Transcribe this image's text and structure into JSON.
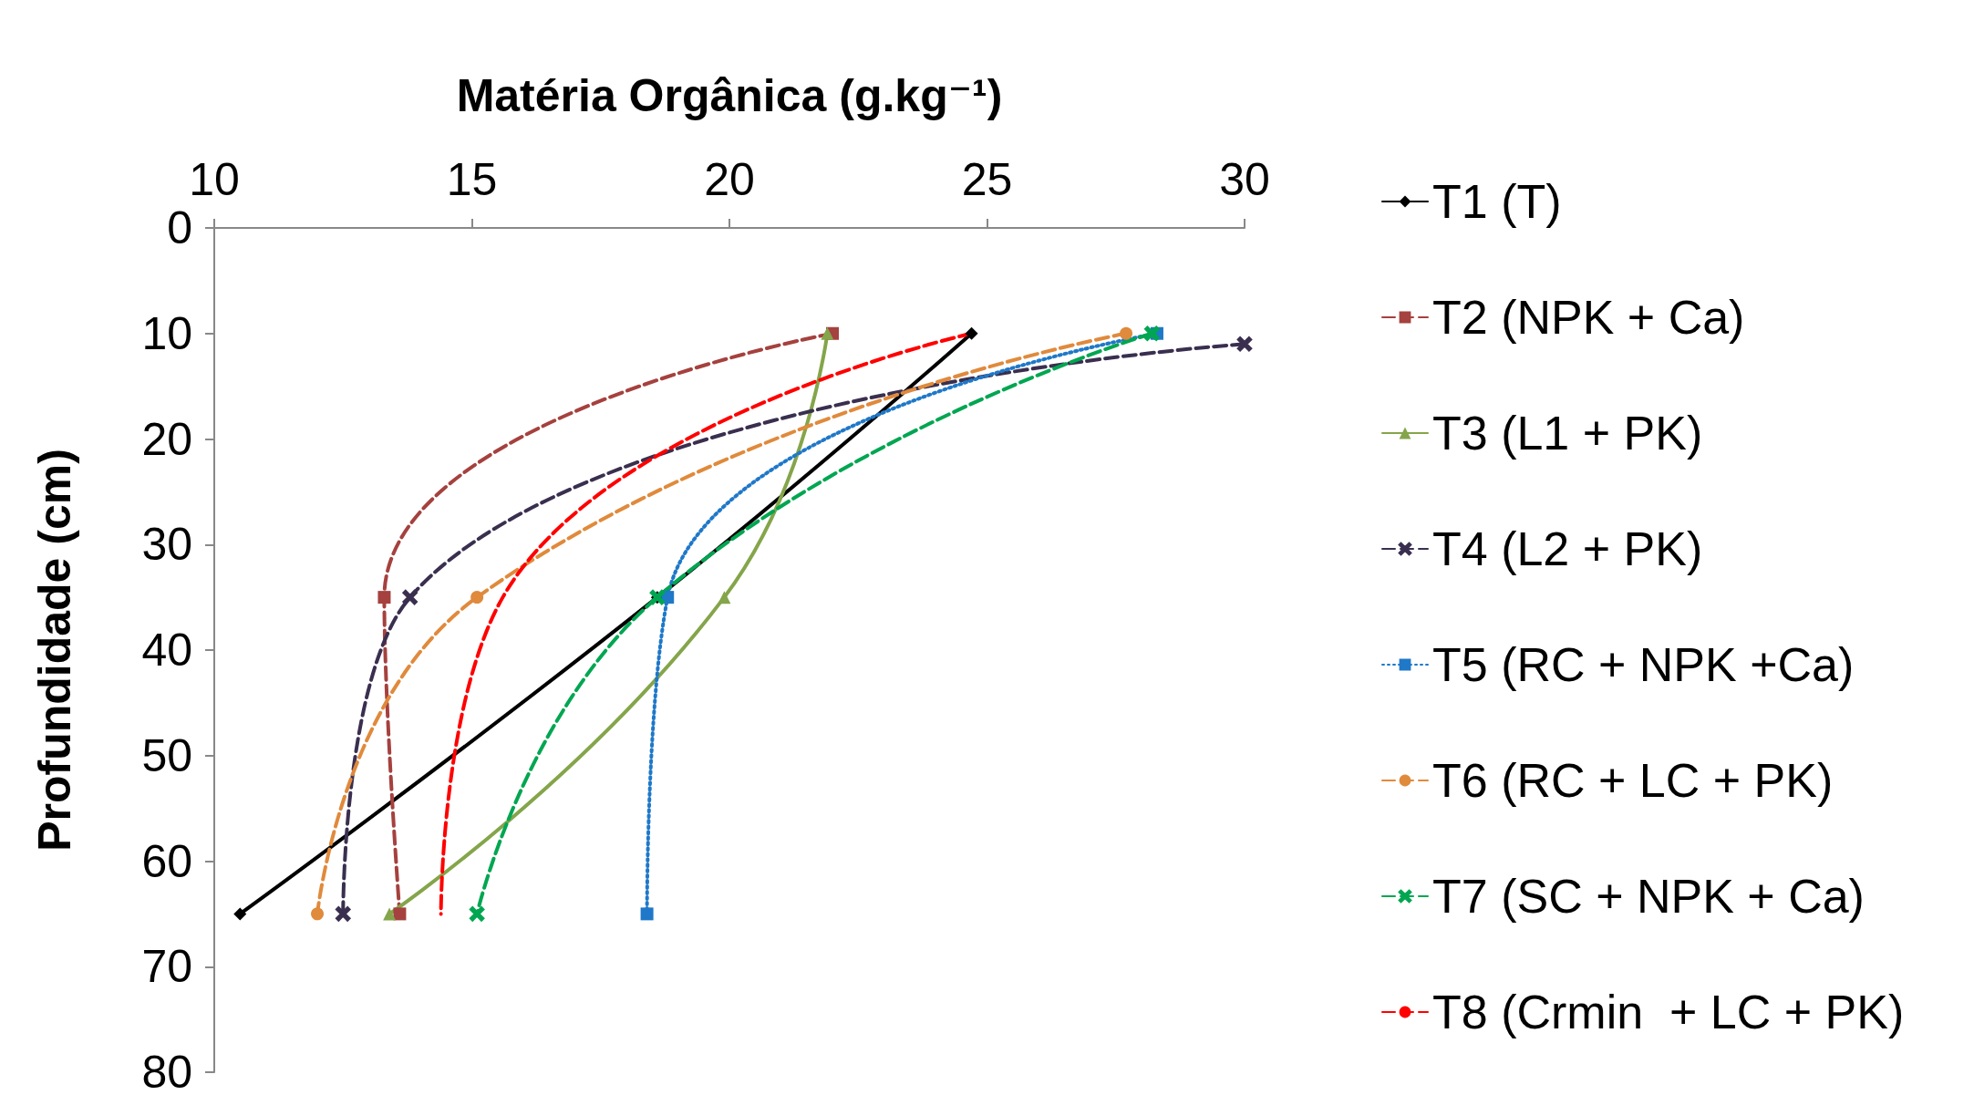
{
  "chart_data": {
    "type": "line",
    "xlabel": "Matéria Orgânica (g.kg⁻¹)",
    "ylabel": "Profundidade (cm)",
    "xlim": [
      10,
      30
    ],
    "xticks": [
      10,
      15,
      20,
      25,
      30
    ],
    "ylim": [
      80,
      0
    ],
    "yticks": [
      0,
      10,
      20,
      30,
      40,
      50,
      60,
      70,
      80
    ],
    "grid": false,
    "legend": "right",
    "series": [
      {
        "name": "T1 (T)",
        "color": "#000000",
        "marker": "diamond",
        "line_style": "solid",
        "x": [
          24.7,
          18.6,
          10.5
        ],
        "values": [
          10,
          35,
          65
        ]
      },
      {
        "name": "T2 (NPK + Ca)",
        "color": "#a5413e",
        "marker": "square",
        "line_style": "dashed",
        "x": [
          22.0,
          13.3,
          13.6
        ],
        "values": [
          10,
          35,
          65
        ]
      },
      {
        "name": "T3 (L1 + PK)",
        "color": "#84a54a",
        "marker": "triangle",
        "line_style": "solid",
        "x": [
          21.9,
          19.9,
          13.4
        ],
        "values": [
          10,
          35,
          65
        ]
      },
      {
        "name": "T4 (L2 + PK)",
        "color": "#3a2f4f",
        "marker": "cross",
        "line_style": "dashed",
        "x": [
          30,
          13.8,
          12.5
        ],
        "values": [
          11,
          35,
          65
        ]
      },
      {
        "name": "T5 (RC + NPK +Ca)",
        "color": "#1f78c8",
        "marker": "square",
        "line_style": "dotted",
        "x": [
          28.3,
          18.8,
          18.4
        ],
        "values": [
          10,
          35,
          65
        ]
      },
      {
        "name": "T6 (RC + LC + PK)",
        "color": "#e08a3c",
        "marker": "circle",
        "line_style": "dashed",
        "x": [
          27.7,
          15.1,
          12.0
        ],
        "values": [
          10,
          35,
          65
        ]
      },
      {
        "name": "T7 (SC + NPK + Ca)",
        "color": "#00a651",
        "marker": "cross",
        "line_style": "dashed",
        "x": [
          28.2,
          18.6,
          15.1
        ],
        "values": [
          10,
          35,
          65
        ]
      },
      {
        "name": "T8 (Crmin  + LC + PK)",
        "color": "#ff0000",
        "marker": "none",
        "line_style": "dashed",
        "x": [
          24.7,
          15.6,
          14.4
        ],
        "values": [
          10,
          35,
          65
        ]
      }
    ]
  }
}
